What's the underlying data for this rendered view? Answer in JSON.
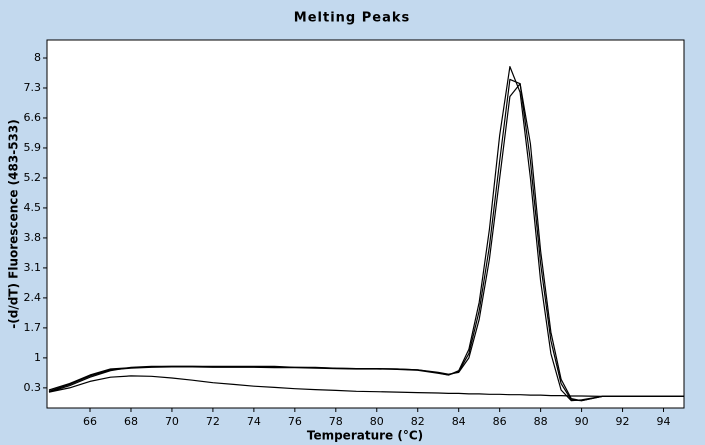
{
  "chart_data": {
    "type": "line",
    "title": "Melting Peaks",
    "x_label": "Temperature (°C)",
    "y_label": "-(d/dT) Fluorescence (483-533)",
    "x": [
      64,
      65,
      66,
      67,
      68,
      69,
      70,
      71,
      72,
      73,
      74,
      75,
      76,
      77,
      78,
      79,
      80,
      81,
      82,
      83,
      83.5,
      84,
      84.5,
      85,
      85.5,
      86,
      86.5,
      87,
      87.5,
      88,
      88.5,
      89,
      89.5,
      90,
      91,
      92,
      93,
      94,
      95
    ],
    "series": [
      {
        "color": "#000000",
        "values": [
          0.2,
          0.35,
          0.55,
          0.7,
          0.78,
          0.8,
          0.8,
          0.8,
          0.8,
          0.8,
          0.8,
          0.8,
          0.78,
          0.78,
          0.76,
          0.75,
          0.75,
          0.74,
          0.72,
          0.65,
          0.6,
          0.7,
          1.2,
          2.3,
          4.0,
          6.2,
          7.8,
          7.2,
          5.2,
          2.8,
          1.1,
          0.25,
          0.0,
          0.02,
          0.1,
          0.1,
          0.1,
          0.1,
          0.1
        ]
      },
      {
        "color": "#000000",
        "values": [
          0.22,
          0.38,
          0.58,
          0.72,
          0.76,
          0.78,
          0.79,
          0.79,
          0.78,
          0.78,
          0.78,
          0.77,
          0.77,
          0.76,
          0.75,
          0.74,
          0.74,
          0.73,
          0.71,
          0.64,
          0.6,
          0.68,
          1.1,
          2.1,
          3.6,
          5.6,
          7.5,
          7.4,
          5.6,
          3.2,
          1.4,
          0.4,
          0.02,
          0.0,
          0.1,
          0.1,
          0.1,
          0.1,
          0.1
        ]
      },
      {
        "color": "#000000",
        "values": [
          0.25,
          0.4,
          0.6,
          0.74,
          0.77,
          0.79,
          0.8,
          0.8,
          0.79,
          0.79,
          0.79,
          0.78,
          0.78,
          0.77,
          0.76,
          0.75,
          0.75,
          0.74,
          0.72,
          0.66,
          0.62,
          0.66,
          1.0,
          1.9,
          3.3,
          5.2,
          7.1,
          7.4,
          6.0,
          3.5,
          1.6,
          0.5,
          0.05,
          0.0,
          0.1,
          0.1,
          0.1,
          0.1,
          0.1
        ]
      },
      {
        "color": "#000000",
        "values": [
          0.2,
          0.3,
          0.45,
          0.55,
          0.58,
          0.57,
          0.53,
          0.48,
          0.42,
          0.38,
          0.34,
          0.31,
          0.28,
          0.26,
          0.24,
          0.22,
          0.21,
          0.2,
          0.19,
          0.18,
          0.17,
          0.17,
          0.16,
          0.16,
          0.15,
          0.15,
          0.14,
          0.14,
          0.13,
          0.13,
          0.12,
          0.12,
          0.11,
          0.11,
          0.1,
          0.1,
          0.1,
          0.1,
          0.1
        ]
      }
    ],
    "xlim": [
      63.9,
      95
    ],
    "xticks": [
      66,
      68,
      70,
      72,
      74,
      76,
      78,
      80,
      82,
      84,
      86,
      88,
      90,
      92,
      94
    ],
    "ylim": [
      -0.17,
      8.42
    ],
    "yticks": [
      0.3,
      1,
      1.7,
      2.4,
      3.1,
      3.8,
      4.5,
      5.2,
      5.9,
      6.6,
      7.3,
      8
    ]
  }
}
